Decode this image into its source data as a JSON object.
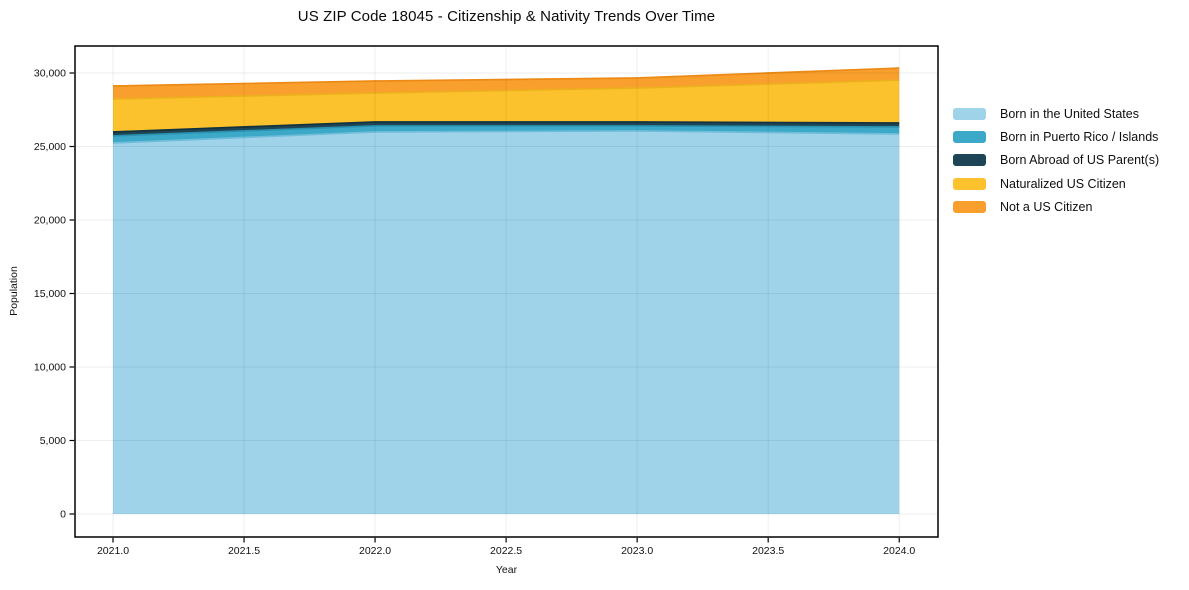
{
  "chart_data": {
    "type": "area",
    "stacked": true,
    "title": "US ZIP Code 18045 - Citizenship & Nativity Trends Over Time",
    "xlabel": "Year",
    "ylabel": "Population",
    "x": [
      2021,
      2022,
      2023,
      2024
    ],
    "series": [
      {
        "name": "Born in the United States",
        "color": "#9ed3ea",
        "edge": "#6fbdd9",
        "values": [
          25240,
          25990,
          26060,
          25850
        ]
      },
      {
        "name": "Born in Puerto Rico / Islands",
        "color": "#3da9c8",
        "edge": "#2b93b1",
        "values": [
          480,
          410,
          340,
          480
        ]
      },
      {
        "name": "Born Abroad of US Parent(s)",
        "color": "#1d4555",
        "edge": "#12323f",
        "values": [
          270,
          270,
          270,
          270
        ]
      },
      {
        "name": "Naturalized US Citizen",
        "color": "#fbc22d",
        "edge": "#edaf1e",
        "values": [
          2240,
          1970,
          2310,
          2920
        ]
      },
      {
        "name": "Not a US Citizen",
        "color": "#f89f2e",
        "edge": "#ed8a15",
        "values": [
          885,
          815,
          680,
          815
        ]
      }
    ],
    "xticks": {
      "values": [
        2021,
        2021.5,
        2022,
        2022.5,
        2023,
        2023.5,
        2024
      ],
      "labels": [
        "2021.0",
        "2021.5",
        "2022.0",
        "2022.5",
        "2023.0",
        "2023.5",
        "2024.0"
      ]
    },
    "yticks": {
      "values": [
        0,
        5000,
        10000,
        15000,
        20000,
        25000,
        30000
      ],
      "labels": [
        "0",
        "5,000",
        "10,000",
        "15,000",
        "20,000",
        "25,000",
        "30,000"
      ]
    },
    "xlim": [
      2020.855,
      2024.148
    ],
    "ylim": [
      -1565,
      31837
    ],
    "grid": true,
    "legend_position": "right",
    "frame_color": "#000000",
    "grid_overlay_color": "rgba(0,0,0,0.065)",
    "tick_color": "#000000",
    "text_color": "#111111",
    "background": "#ffffff"
  }
}
